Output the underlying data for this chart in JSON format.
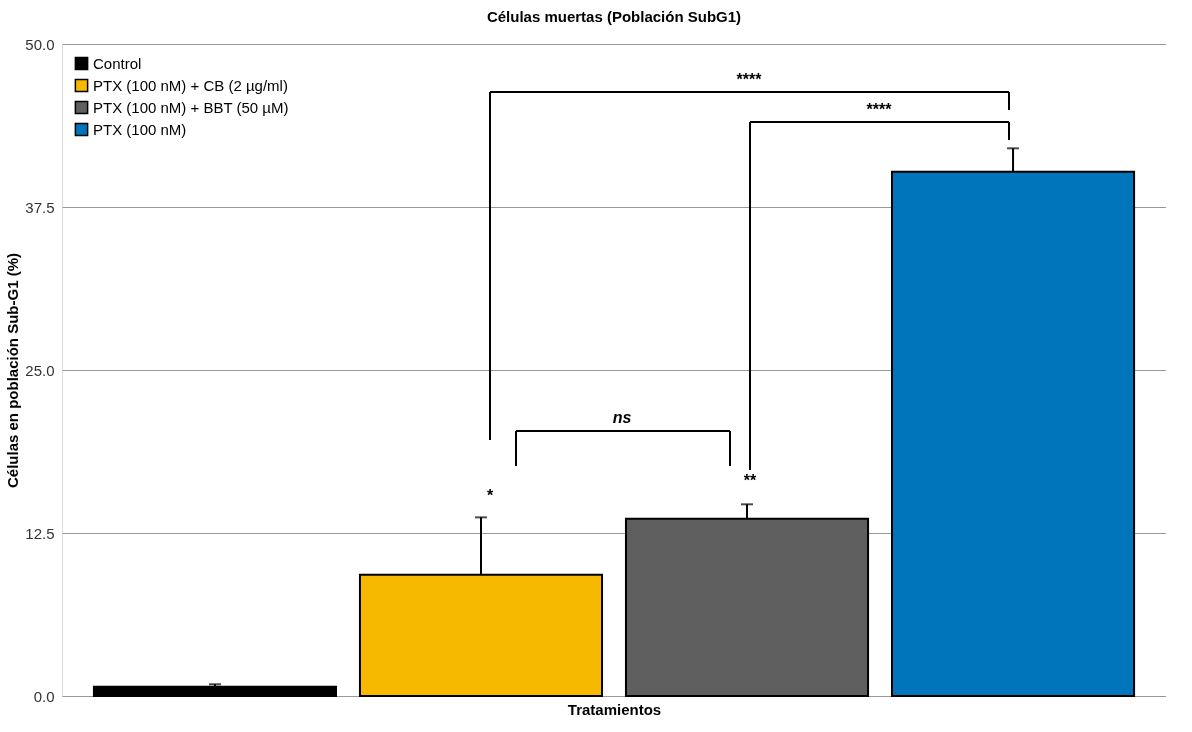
{
  "chart_data": {
    "type": "bar",
    "title": "Células muertas (Población SubG1)",
    "xlabel": "Tratamientos",
    "ylabel": "Células en población Sub-G1 (%)",
    "categories": [
      null,
      null,
      null,
      null
    ],
    "series": [
      {
        "name": "Control",
        "color": "#000000",
        "values": [
          0.7,
          null,
          null,
          null
        ],
        "errors": [
          0.2,
          null,
          null,
          null
        ]
      },
      {
        "name": "PTX (100 nM) + CB (2 µg/ml)",
        "color": "#f6b900",
        "values": [
          null,
          9.3,
          null,
          null
        ],
        "errors": [
          null,
          4.4,
          null,
          null
        ]
      },
      {
        "name": "PTX (100 nM) + BBT (50 µM)",
        "color": "#5f5f5f",
        "values": [
          null,
          null,
          13.6,
          null
        ],
        "errors": [
          null,
          null,
          1.1,
          null
        ]
      },
      {
        "name": "PTX (100 nM)",
        "color": "#0075bb",
        "values": [
          null,
          null,
          null,
          40.2
        ],
        "errors": [
          null,
          null,
          null,
          1.8
        ]
      }
    ],
    "ylim": [
      0,
      50
    ],
    "yticks": [
      {
        "value": 0,
        "label": "0.0"
      },
      {
        "value": 12.5,
        "label": "12.5"
      },
      {
        "value": 25,
        "label": "25.0"
      },
      {
        "value": 37.5,
        "label": "37.5"
      },
      {
        "value": 50,
        "label": "50.0"
      }
    ],
    "grid": "y",
    "legend": "top left",
    "tick_labels": "y",
    "annotations": [
      "*",
      "**",
      "ns",
      "****",
      "****"
    ]
  }
}
